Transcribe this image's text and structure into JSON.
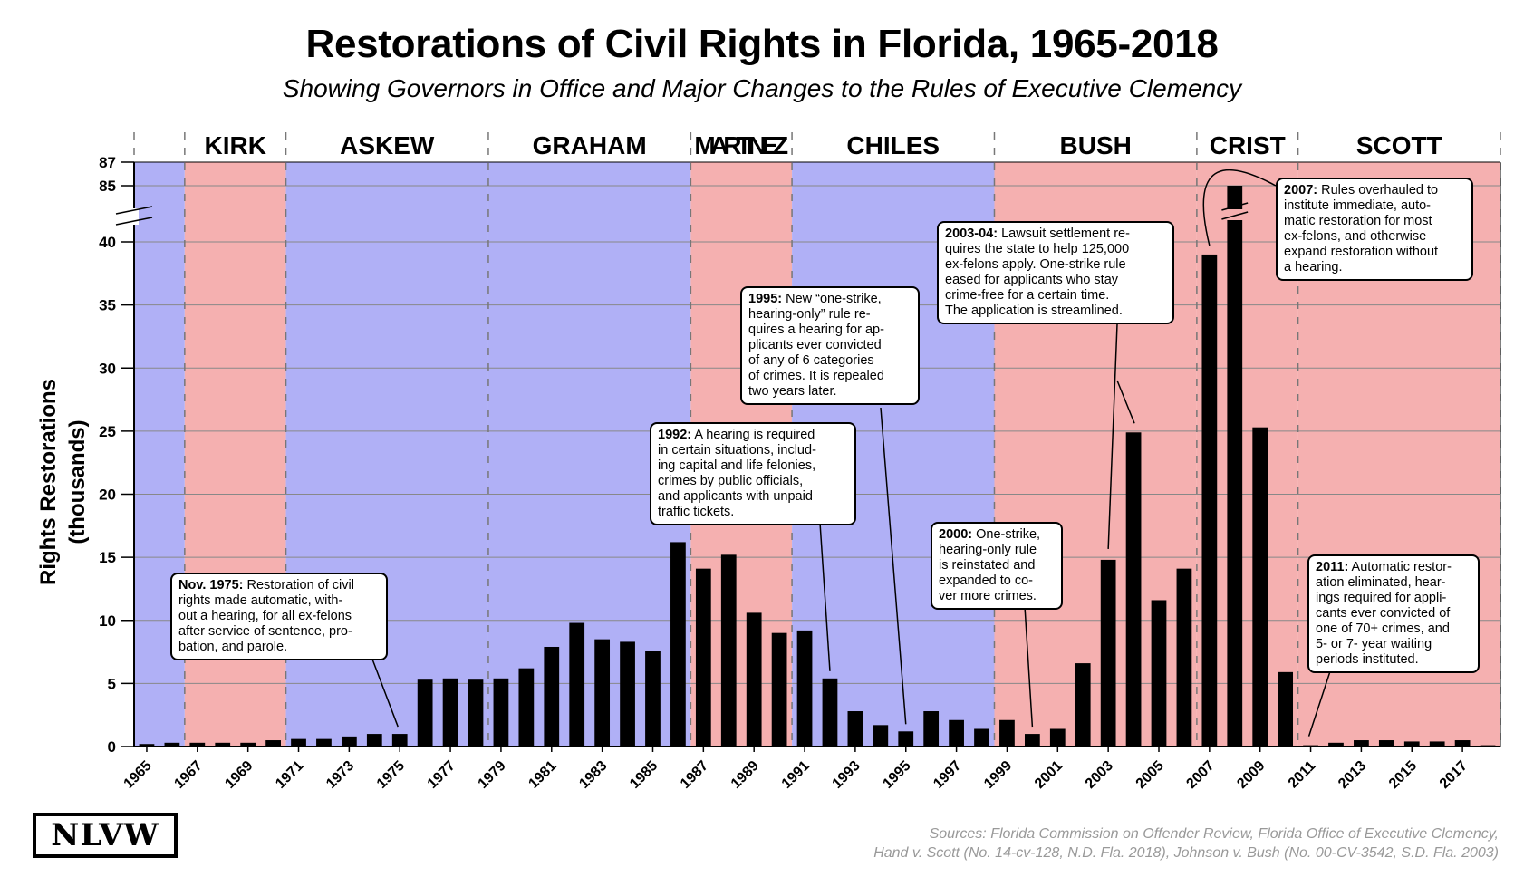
{
  "chart_data": {
    "type": "bar",
    "title": "Restorations of Civil Rights in Florida, 1965-2018",
    "subtitle": "Showing Governors in Office and Major Changes to the Rules of Executive Clemency",
    "ylabel": [
      "Rights Restorations",
      "(thousands)"
    ],
    "xlabel": "",
    "x": [
      1965,
      1966,
      1967,
      1968,
      1969,
      1970,
      1971,
      1972,
      1973,
      1974,
      1975,
      1976,
      1977,
      1978,
      1979,
      1980,
      1981,
      1982,
      1983,
      1984,
      1985,
      1986,
      1987,
      1988,
      1989,
      1990,
      1991,
      1992,
      1993,
      1994,
      1995,
      1996,
      1997,
      1998,
      1999,
      2000,
      2001,
      2002,
      2003,
      2004,
      2005,
      2006,
      2007,
      2008,
      2009,
      2010,
      2011,
      2012,
      2013,
      2014,
      2015,
      2016,
      2017,
      2018
    ],
    "values": [
      0.2,
      0.3,
      0.3,
      0.3,
      0.3,
      0.5,
      0.6,
      0.6,
      0.8,
      1.0,
      1.0,
      5.3,
      5.4,
      5.3,
      5.4,
      6.2,
      7.9,
      9.8,
      8.5,
      8.3,
      7.6,
      16.2,
      14.1,
      15.2,
      10.6,
      9.0,
      9.2,
      5.4,
      2.8,
      1.7,
      1.2,
      2.8,
      2.1,
      1.4,
      2.1,
      1.0,
      1.4,
      6.6,
      14.8,
      24.9,
      11.6,
      14.1,
      39.0,
      85.0,
      25.3,
      5.9,
      0.1,
      0.3,
      0.5,
      0.5,
      0.4,
      0.4,
      0.5,
      0.1
    ],
    "x_tick_labels": [
      "1965",
      "1967",
      "1969",
      "1971",
      "1973",
      "1975",
      "1977",
      "1979",
      "1981",
      "1983",
      "1985",
      "1987",
      "1989",
      "1991",
      "1993",
      "1995",
      "1997",
      "1999",
      "2001",
      "2003",
      "2005",
      "2007",
      "2009",
      "2011",
      "2013",
      "2015",
      "2017"
    ],
    "y_ticks": [
      "0",
      "5",
      "10",
      "15",
      "20",
      "25",
      "30",
      "35",
      "40"
    ],
    "y_ticks_upper": [
      "85",
      "87"
    ],
    "ylim": [
      0,
      87
    ],
    "axis_break": [
      42,
      84
    ],
    "grid": true,
    "governors": [
      {
        "name": "KIRK",
        "start": 1967,
        "end": 1971,
        "party": "R"
      },
      {
        "name": "ASKEW",
        "start": 1971,
        "end": 1979,
        "party": "D"
      },
      {
        "name": "GRAHAM",
        "start": 1979,
        "end": 1987,
        "party": "D"
      },
      {
        "name": "MARTINEZ",
        "start": 1987,
        "end": 1991,
        "party": "R"
      },
      {
        "name": "CHILES",
        "start": 1991,
        "end": 1999,
        "party": "D"
      },
      {
        "name": "BUSH",
        "start": 1999,
        "end": 2007,
        "party": "R"
      },
      {
        "name": "CRIST",
        "start": 2007,
        "end": 2011,
        "party": "R"
      },
      {
        "name": "SCOTT",
        "start": 2011,
        "end": 2019,
        "party": "R"
      }
    ],
    "annotations": [
      {
        "id": "1975",
        "lead": "Nov. 1975:",
        "lines": [
          "Restoration of civil",
          "rights made automatic, with-",
          "out a hearing, for all ex-felons",
          "after service of sentence, pro-",
          "bation, and parole."
        ],
        "points_to_year": 1975
      },
      {
        "id": "1992",
        "lead": "1992:",
        "lines": [
          "A hearing is required",
          "in certain situations, includ-",
          "ing capital and life felonies,",
          "crimes by public officials,",
          "and applicants with unpaid",
          "traffic tickets."
        ],
        "points_to_year": 1992
      },
      {
        "id": "1995",
        "lead": "1995:",
        "lines": [
          "New “one-strike,",
          "hearing-only” rule re-",
          "quires a hearing for ap-",
          "plicants ever convicted",
          "of any of 6 categories",
          "of crimes. It is repealed",
          "two years later."
        ],
        "points_to_year": 1995
      },
      {
        "id": "2000",
        "lead": "2000:",
        "lines": [
          "One-strike,",
          "hearing-only rule",
          "is reinstated and",
          "expanded to co-",
          "ver more crimes."
        ],
        "points_to_year": 2000
      },
      {
        "id": "2003",
        "lead": "2003-04:",
        "lines": [
          "Lawsuit settlement re-",
          "quires the state to help 125,000",
          "ex-felons apply. One-strike rule",
          "eased for applicants who stay",
          "crime-free for a certain time.",
          "The application is streamlined."
        ],
        "points_to_year": 2003
      },
      {
        "id": "2007",
        "lead": "2007:",
        "lines": [
          "Rules overhauled to",
          "institute immediate, auto-",
          "matic restoration for most",
          "ex-felons, and otherwise",
          "expand restoration without",
          "a hearing."
        ],
        "points_to_year": 2007
      },
      {
        "id": "2011",
        "lead": "2011:",
        "lines": [
          "Automatic restor-",
          "ation eliminated, hear-",
          "ings required for appli-",
          "cants ever convicted of",
          "one of 70+ crimes, and",
          "5- or 7- year waiting",
          "periods instituted."
        ],
        "points_to_year": 2011
      }
    ],
    "colors": {
      "democrat": "#b0b0f6",
      "republican": "#f5b0b0",
      "bar": "#000000",
      "grid": "#888888"
    }
  },
  "logo": "NLVW",
  "sources": [
    "Sources: Florida Commission on Offender Review, Florida Office of Executive Clemency,",
    "Hand v. Scott (No. 14-cv-128, N.D. Fla. 2018), Johnson v. Bush (No. 00-CV-3542, S.D. Fla. 2003)"
  ]
}
